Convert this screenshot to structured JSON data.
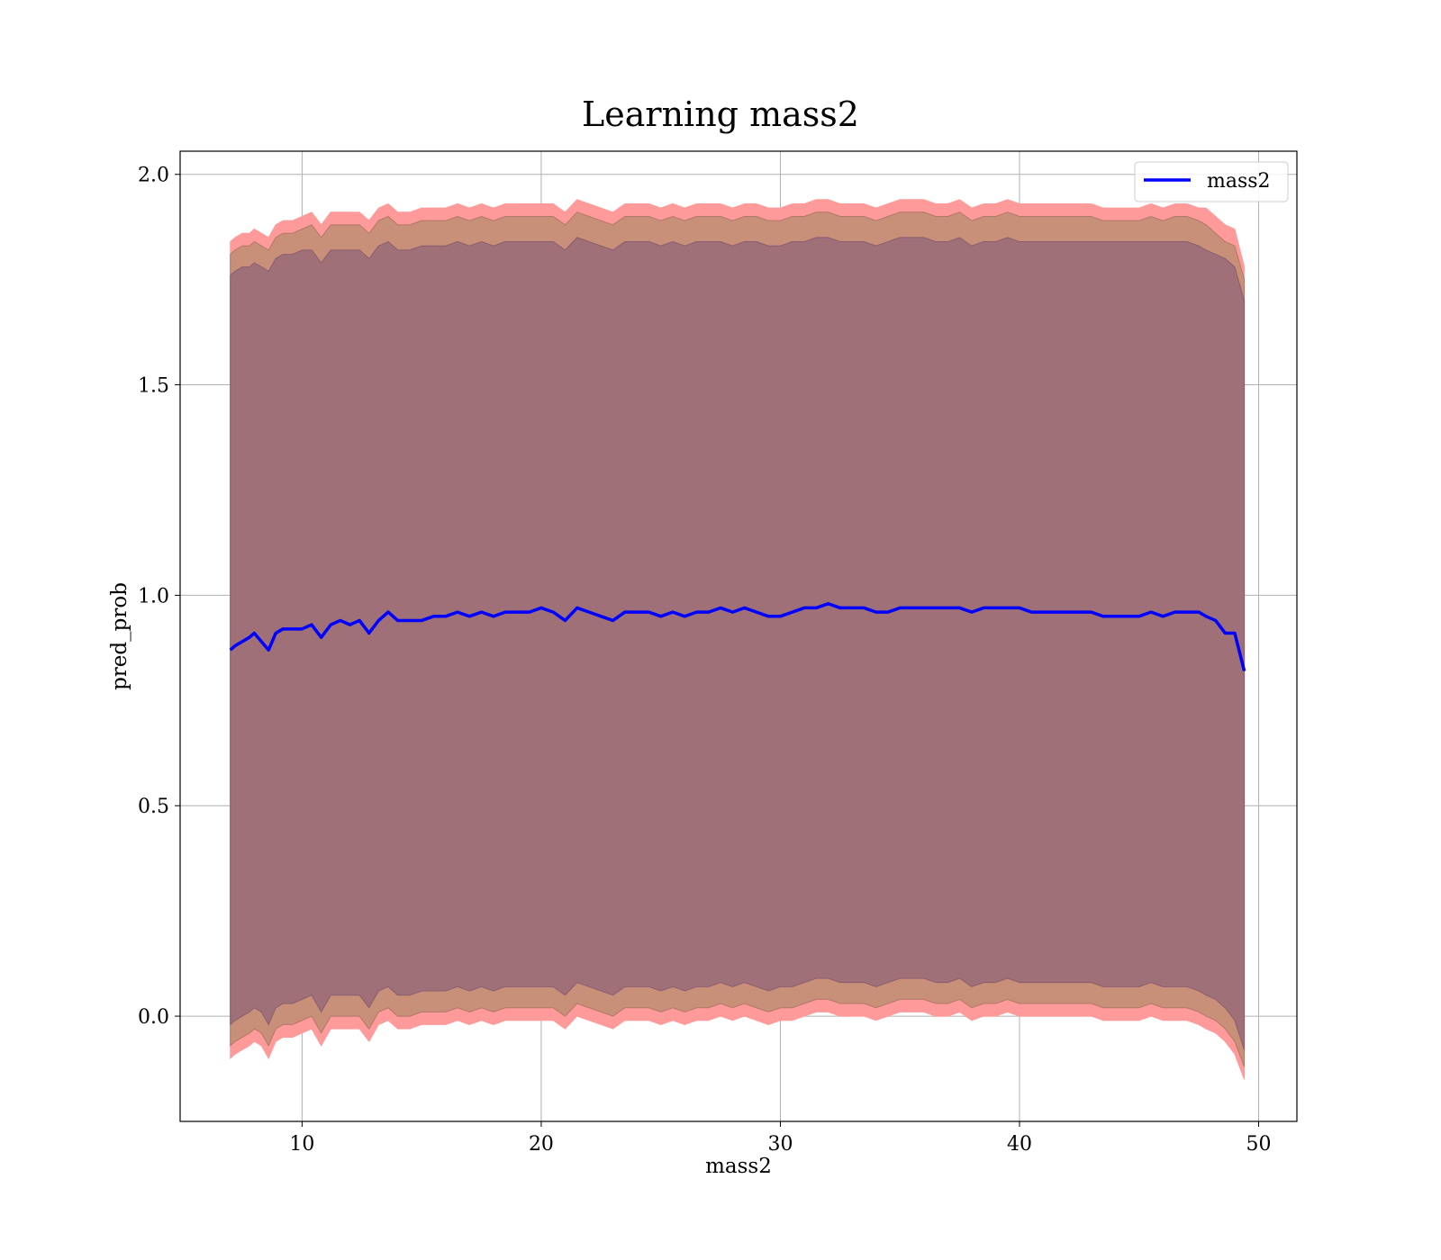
{
  "chart_data": {
    "type": "line",
    "title": "Learning mass2",
    "xlabel": "mass2",
    "ylabel": "pred_prob",
    "xlim": [
      4.9,
      51.6
    ],
    "ylim": [
      -0.25,
      2.055
    ],
    "xticks": [
      10,
      20,
      30,
      40,
      50
    ],
    "yticks": [
      0.0,
      0.5,
      1.0,
      1.5,
      2.0
    ],
    "xtick_labels": [
      "10",
      "20",
      "30",
      "40",
      "50"
    ],
    "ytick_labels": [
      "0.0",
      "0.5",
      "1.0",
      "1.5",
      "2.0"
    ],
    "grid": true,
    "legend": {
      "position": "top-right",
      "entries": [
        "mass2"
      ]
    },
    "colors": {
      "line": "#0000ff",
      "band_outer": "#ff9a9a",
      "band_middle": "#c89078",
      "band_inner": "#a07078"
    },
    "series": [
      {
        "name": "mass2",
        "x": [
          7.0,
          7.2,
          7.5,
          7.8,
          8.0,
          8.3,
          8.6,
          8.9,
          9.2,
          9.6,
          10.0,
          10.4,
          10.8,
          11.2,
          11.6,
          12.0,
          12.4,
          12.8,
          13.2,
          13.6,
          14.0,
          14.5,
          15.0,
          15.5,
          16.0,
          16.5,
          17.0,
          17.5,
          18.0,
          18.5,
          19.0,
          19.5,
          20.0,
          20.5,
          21.0,
          21.5,
          22.0,
          22.5,
          23.0,
          23.5,
          24.0,
          24.5,
          25.0,
          25.5,
          26.0,
          26.5,
          27.0,
          27.5,
          28.0,
          28.5,
          29.0,
          29.5,
          30.0,
          30.5,
          31.0,
          31.5,
          32.0,
          32.5,
          33.0,
          33.5,
          34.0,
          34.5,
          35.0,
          35.5,
          36.0,
          36.5,
          37.0,
          37.5,
          38.0,
          38.5,
          39.0,
          39.5,
          40.0,
          40.5,
          41.0,
          41.5,
          42.0,
          42.5,
          43.0,
          43.5,
          44.0,
          44.5,
          45.0,
          45.5,
          46.0,
          46.5,
          47.0,
          47.5,
          47.8,
          48.2,
          48.6,
          49.0,
          49.4
        ],
        "mean": [
          0.87,
          0.88,
          0.89,
          0.9,
          0.91,
          0.89,
          0.87,
          0.91,
          0.92,
          0.92,
          0.92,
          0.93,
          0.9,
          0.93,
          0.94,
          0.93,
          0.94,
          0.91,
          0.94,
          0.96,
          0.94,
          0.94,
          0.94,
          0.95,
          0.95,
          0.96,
          0.95,
          0.96,
          0.95,
          0.96,
          0.96,
          0.96,
          0.97,
          0.96,
          0.94,
          0.97,
          0.96,
          0.95,
          0.94,
          0.96,
          0.96,
          0.96,
          0.95,
          0.96,
          0.95,
          0.96,
          0.96,
          0.97,
          0.96,
          0.97,
          0.96,
          0.95,
          0.95,
          0.96,
          0.97,
          0.97,
          0.98,
          0.97,
          0.97,
          0.97,
          0.96,
          0.96,
          0.97,
          0.97,
          0.97,
          0.97,
          0.97,
          0.97,
          0.96,
          0.97,
          0.97,
          0.97,
          0.97,
          0.96,
          0.96,
          0.96,
          0.96,
          0.96,
          0.96,
          0.95,
          0.95,
          0.95,
          0.95,
          0.96,
          0.95,
          0.96,
          0.96,
          0.96,
          0.95,
          0.94,
          0.91,
          0.91,
          0.82
        ],
        "outer_upper": [
          1.84,
          1.85,
          1.86,
          1.86,
          1.87,
          1.86,
          1.85,
          1.88,
          1.89,
          1.89,
          1.9,
          1.91,
          1.88,
          1.91,
          1.91,
          1.91,
          1.91,
          1.89,
          1.92,
          1.93,
          1.91,
          1.91,
          1.92,
          1.92,
          1.92,
          1.93,
          1.92,
          1.93,
          1.92,
          1.93,
          1.93,
          1.93,
          1.93,
          1.93,
          1.91,
          1.94,
          1.93,
          1.92,
          1.91,
          1.93,
          1.93,
          1.93,
          1.92,
          1.93,
          1.92,
          1.93,
          1.93,
          1.93,
          1.92,
          1.93,
          1.93,
          1.92,
          1.92,
          1.93,
          1.93,
          1.94,
          1.94,
          1.93,
          1.93,
          1.93,
          1.92,
          1.93,
          1.94,
          1.94,
          1.94,
          1.93,
          1.93,
          1.94,
          1.92,
          1.93,
          1.93,
          1.94,
          1.93,
          1.93,
          1.93,
          1.93,
          1.93,
          1.93,
          1.93,
          1.92,
          1.92,
          1.92,
          1.92,
          1.93,
          1.92,
          1.93,
          1.93,
          1.92,
          1.92,
          1.9,
          1.88,
          1.87,
          1.78
        ],
        "outer_lower": [
          -0.1,
          -0.09,
          -0.08,
          -0.07,
          -0.06,
          -0.07,
          -0.1,
          -0.06,
          -0.05,
          -0.05,
          -0.04,
          -0.03,
          -0.07,
          -0.03,
          -0.03,
          -0.03,
          -0.03,
          -0.06,
          -0.02,
          -0.01,
          -0.03,
          -0.03,
          -0.02,
          -0.02,
          -0.02,
          -0.01,
          -0.02,
          -0.01,
          -0.02,
          -0.01,
          -0.01,
          -0.01,
          -0.01,
          -0.01,
          -0.03,
          0.0,
          -0.01,
          -0.02,
          -0.03,
          -0.01,
          -0.01,
          -0.01,
          -0.02,
          -0.01,
          -0.02,
          -0.01,
          -0.01,
          0.0,
          -0.01,
          0.0,
          -0.01,
          -0.02,
          -0.01,
          -0.01,
          0.0,
          0.01,
          0.01,
          0.0,
          0.0,
          0.0,
          -0.01,
          0.0,
          0.01,
          0.01,
          0.01,
          0.0,
          0.0,
          0.01,
          -0.01,
          0.0,
          0.0,
          0.01,
          0.0,
          0.0,
          0.0,
          0.0,
          0.0,
          0.0,
          0.0,
          -0.01,
          -0.01,
          -0.01,
          -0.01,
          0.0,
          -0.01,
          -0.01,
          -0.01,
          -0.02,
          -0.03,
          -0.04,
          -0.06,
          -0.09,
          -0.15
        ],
        "middle_upper": [
          1.81,
          1.82,
          1.83,
          1.83,
          1.84,
          1.83,
          1.82,
          1.85,
          1.86,
          1.86,
          1.87,
          1.88,
          1.85,
          1.88,
          1.88,
          1.88,
          1.88,
          1.86,
          1.89,
          1.9,
          1.88,
          1.88,
          1.89,
          1.89,
          1.89,
          1.9,
          1.89,
          1.9,
          1.89,
          1.9,
          1.9,
          1.9,
          1.9,
          1.9,
          1.88,
          1.91,
          1.9,
          1.89,
          1.88,
          1.9,
          1.9,
          1.9,
          1.89,
          1.9,
          1.89,
          1.9,
          1.9,
          1.9,
          1.89,
          1.9,
          1.9,
          1.89,
          1.89,
          1.9,
          1.9,
          1.91,
          1.91,
          1.9,
          1.9,
          1.9,
          1.89,
          1.9,
          1.91,
          1.91,
          1.91,
          1.9,
          1.9,
          1.91,
          1.89,
          1.9,
          1.9,
          1.91,
          1.9,
          1.9,
          1.9,
          1.9,
          1.9,
          1.9,
          1.9,
          1.89,
          1.89,
          1.89,
          1.89,
          1.9,
          1.89,
          1.9,
          1.9,
          1.89,
          1.88,
          1.86,
          1.84,
          1.83,
          1.75
        ],
        "middle_lower": [
          -0.07,
          -0.06,
          -0.05,
          -0.04,
          -0.03,
          -0.04,
          -0.07,
          -0.03,
          -0.02,
          -0.02,
          -0.01,
          0.0,
          -0.04,
          0.0,
          0.0,
          0.0,
          0.0,
          -0.03,
          0.01,
          0.02,
          0.0,
          0.0,
          0.01,
          0.01,
          0.01,
          0.02,
          0.01,
          0.02,
          0.01,
          0.02,
          0.02,
          0.02,
          0.02,
          0.02,
          0.0,
          0.03,
          0.02,
          0.01,
          0.0,
          0.02,
          0.02,
          0.02,
          0.01,
          0.02,
          0.01,
          0.02,
          0.02,
          0.03,
          0.02,
          0.03,
          0.02,
          0.01,
          0.02,
          0.02,
          0.03,
          0.04,
          0.04,
          0.03,
          0.03,
          0.03,
          0.02,
          0.03,
          0.04,
          0.04,
          0.04,
          0.03,
          0.03,
          0.04,
          0.02,
          0.03,
          0.03,
          0.04,
          0.03,
          0.03,
          0.03,
          0.03,
          0.03,
          0.03,
          0.03,
          0.02,
          0.02,
          0.02,
          0.02,
          0.03,
          0.02,
          0.02,
          0.02,
          0.01,
          0.0,
          -0.01,
          -0.03,
          -0.06,
          -0.12
        ],
        "inner_upper": [
          1.76,
          1.77,
          1.78,
          1.78,
          1.79,
          1.78,
          1.77,
          1.8,
          1.81,
          1.81,
          1.82,
          1.82,
          1.79,
          1.82,
          1.82,
          1.82,
          1.82,
          1.8,
          1.83,
          1.84,
          1.82,
          1.82,
          1.83,
          1.83,
          1.83,
          1.84,
          1.83,
          1.84,
          1.83,
          1.84,
          1.84,
          1.84,
          1.84,
          1.84,
          1.82,
          1.85,
          1.84,
          1.83,
          1.82,
          1.84,
          1.84,
          1.84,
          1.83,
          1.84,
          1.83,
          1.84,
          1.84,
          1.84,
          1.83,
          1.84,
          1.84,
          1.83,
          1.83,
          1.84,
          1.84,
          1.85,
          1.85,
          1.84,
          1.84,
          1.84,
          1.83,
          1.84,
          1.85,
          1.85,
          1.85,
          1.84,
          1.84,
          1.85,
          1.83,
          1.84,
          1.84,
          1.85,
          1.84,
          1.84,
          1.84,
          1.84,
          1.84,
          1.84,
          1.84,
          1.84,
          1.84,
          1.84,
          1.84,
          1.84,
          1.84,
          1.84,
          1.84,
          1.83,
          1.82,
          1.81,
          1.8,
          1.78,
          1.7
        ],
        "inner_lower": [
          -0.02,
          -0.01,
          0.0,
          0.01,
          0.02,
          0.01,
          -0.02,
          0.02,
          0.03,
          0.03,
          0.04,
          0.05,
          0.01,
          0.05,
          0.05,
          0.05,
          0.05,
          0.02,
          0.06,
          0.07,
          0.05,
          0.05,
          0.06,
          0.06,
          0.06,
          0.07,
          0.06,
          0.07,
          0.06,
          0.07,
          0.07,
          0.07,
          0.07,
          0.07,
          0.05,
          0.08,
          0.07,
          0.06,
          0.05,
          0.07,
          0.07,
          0.07,
          0.06,
          0.07,
          0.06,
          0.07,
          0.07,
          0.08,
          0.07,
          0.08,
          0.07,
          0.06,
          0.07,
          0.07,
          0.08,
          0.09,
          0.09,
          0.08,
          0.08,
          0.08,
          0.07,
          0.08,
          0.09,
          0.09,
          0.09,
          0.08,
          0.08,
          0.09,
          0.07,
          0.08,
          0.08,
          0.09,
          0.08,
          0.08,
          0.08,
          0.08,
          0.08,
          0.08,
          0.08,
          0.07,
          0.07,
          0.07,
          0.07,
          0.08,
          0.07,
          0.07,
          0.07,
          0.06,
          0.05,
          0.04,
          0.02,
          -0.01,
          -0.08
        ]
      }
    ]
  }
}
